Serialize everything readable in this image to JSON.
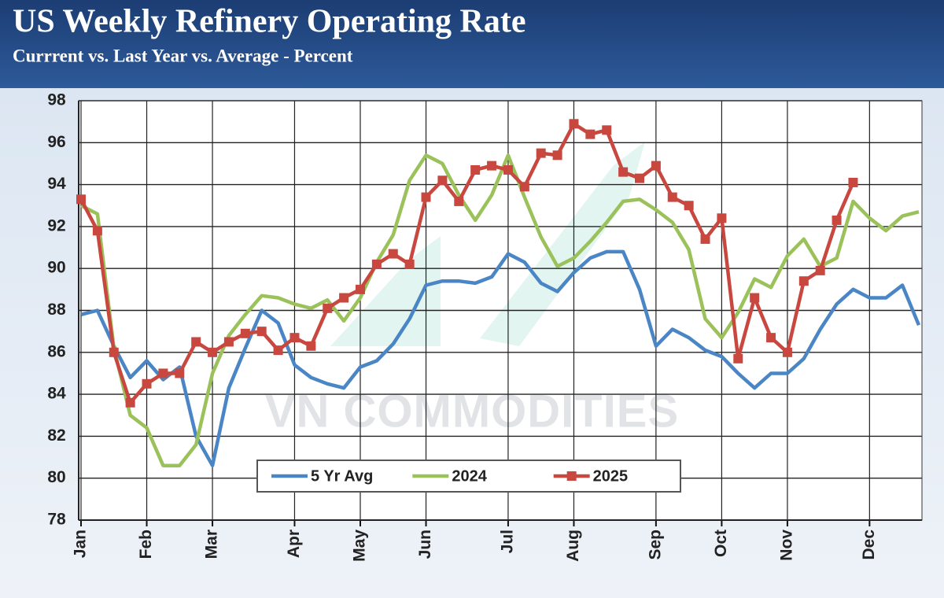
{
  "chart_data": {
    "type": "line",
    "title": "US Weekly Refinery Operating Rate",
    "subtitle": "Currrent vs. Last Year vs. Average - Percent",
    "watermark": "VN COMMODITIES",
    "categories": [
      "Jan",
      null,
      null,
      null,
      "Feb",
      null,
      null,
      null,
      "Mar",
      null,
      null,
      null,
      null,
      "Apr",
      null,
      null,
      null,
      "May",
      null,
      null,
      null,
      "Jun",
      null,
      null,
      null,
      null,
      "Jul",
      null,
      null,
      null,
      "Aug",
      null,
      null,
      null,
      null,
      "Sep",
      null,
      null,
      null,
      "Oct",
      null,
      null,
      null,
      "Nov",
      null,
      null,
      null,
      null,
      "Dec",
      null,
      null,
      null
    ],
    "ylim": [
      78,
      98
    ],
    "yticks": [
      78,
      80,
      82,
      84,
      86,
      88,
      90,
      92,
      94,
      96,
      98
    ],
    "grid": true,
    "legend": "bottom-center",
    "series": [
      {
        "name": "5 Yr Avg",
        "color": "#4a86c5",
        "values": [
          87.8,
          88.0,
          86.3,
          84.8,
          85.6,
          84.7,
          85.3,
          82.0,
          80.6,
          84.3,
          86.2,
          88.0,
          87.4,
          85.4,
          84.8,
          84.5,
          84.3,
          85.3,
          85.6,
          86.4,
          87.6,
          89.2,
          89.4,
          89.4,
          89.3,
          89.6,
          90.7,
          90.3,
          89.3,
          88.9,
          89.8,
          90.5,
          90.8,
          90.8,
          89.0,
          86.3,
          87.1,
          86.7,
          86.1,
          85.8,
          85.0,
          84.3,
          85.0,
          85.0,
          85.7,
          87.1,
          88.3,
          89.0,
          88.6,
          88.6,
          89.2,
          87.3
        ]
      },
      {
        "name": "2024",
        "color": "#9bc15a",
        "values": [
          93.0,
          92.6,
          86.2,
          83.0,
          82.4,
          80.6,
          80.6,
          81.6,
          85.0,
          86.8,
          87.8,
          88.7,
          88.6,
          88.3,
          88.1,
          88.5,
          87.5,
          88.6,
          90.3,
          91.6,
          94.2,
          95.4,
          95.0,
          93.5,
          92.3,
          93.5,
          95.4,
          93.4,
          91.5,
          90.1,
          90.5,
          91.3,
          92.2,
          93.2,
          93.3,
          92.8,
          92.2,
          90.9,
          87.6,
          86.7,
          87.9,
          89.5,
          89.1,
          90.6,
          91.4,
          90.1,
          90.5,
          93.2,
          92.4,
          91.8,
          92.5,
          92.7
        ]
      },
      {
        "name": "2025",
        "color": "#c8473f",
        "marker": "square",
        "values": [
          93.3,
          91.8,
          86.0,
          83.6,
          84.5,
          85.0,
          85.0,
          86.5,
          86.0,
          86.5,
          86.9,
          87.0,
          86.1,
          86.7,
          86.3,
          88.1,
          88.6,
          89.0,
          90.2,
          90.7,
          90.2,
          93.4,
          94.2,
          93.2,
          94.7,
          94.9,
          94.7,
          93.9,
          95.5,
          95.4,
          96.9,
          96.4,
          96.6,
          94.6,
          94.3,
          94.9,
          93.4,
          93.0,
          91.4,
          92.4,
          85.7,
          88.6,
          86.7,
          86.0,
          89.4,
          89.9,
          92.3,
          94.1,
          null,
          null,
          null,
          null
        ]
      }
    ]
  }
}
